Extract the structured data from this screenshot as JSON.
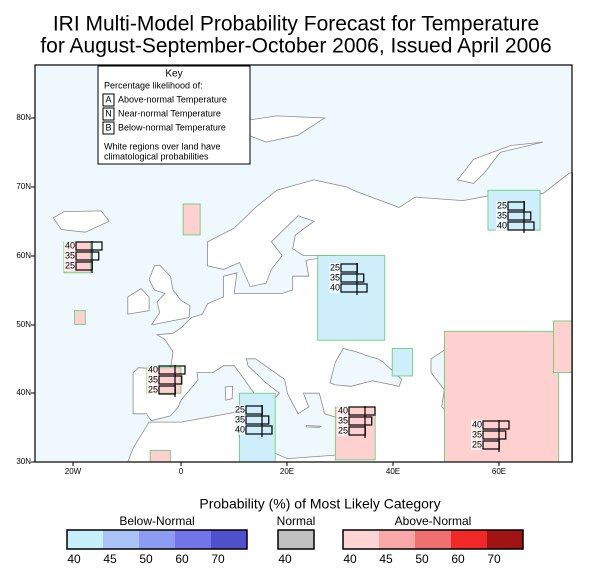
{
  "header": {
    "title_line1": "IRI Multi-Model Probability Forecast for Temperature",
    "title_line2": "for August-September-October 2006, Issued April 2006"
  },
  "key": {
    "title": "Key",
    "subtitle": "Percentage likelihood of:",
    "items": [
      {
        "letter": "A",
        "label": "Above-normal Temperature"
      },
      {
        "letter": "N",
        "label": "Near-normal Temperature"
      },
      {
        "letter": "B",
        "label": "Below-normal Temperature"
      }
    ],
    "note_line1": "White regions over land have",
    "note_line2": "climatological probabilities"
  },
  "axes": {
    "lat_labels": [
      "80N",
      "70N",
      "60N",
      "50N",
      "40N",
      "30N"
    ],
    "lon_labels": [
      "20W",
      "0",
      "20E",
      "40E",
      "60E"
    ]
  },
  "forecasts": [
    {
      "values": [
        40,
        35,
        25
      ]
    },
    {
      "values": [
        25,
        35,
        40
      ]
    },
    {
      "values": [
        25,
        35,
        40
      ]
    },
    {
      "values": [
        40,
        35,
        25
      ]
    },
    {
      "values": [
        25,
        35,
        40
      ]
    },
    {
      "values": [
        40,
        35,
        25
      ]
    },
    {
      "values": [
        40,
        35,
        25
      ]
    }
  ],
  "legend": {
    "title": "Probability (%) of Most Likely Category",
    "groups": [
      {
        "label": "Below-Normal",
        "colors": [
          "#c8f0fa",
          "#aac4f8",
          "#8c9cf0",
          "#7474ea",
          "#5050cc"
        ],
        "ticks": [
          40,
          45,
          50,
          60,
          70
        ]
      },
      {
        "label": "Normal",
        "colors": [
          "#c0c0c0"
        ],
        "ticks": [
          40
        ]
      },
      {
        "label": "Above-Normal",
        "colors": [
          "#ffd4d4",
          "#f8a8a8",
          "#f07070",
          "#f02828",
          "#a01414"
        ],
        "ticks": [
          40,
          45,
          50,
          60,
          70
        ]
      }
    ]
  }
}
